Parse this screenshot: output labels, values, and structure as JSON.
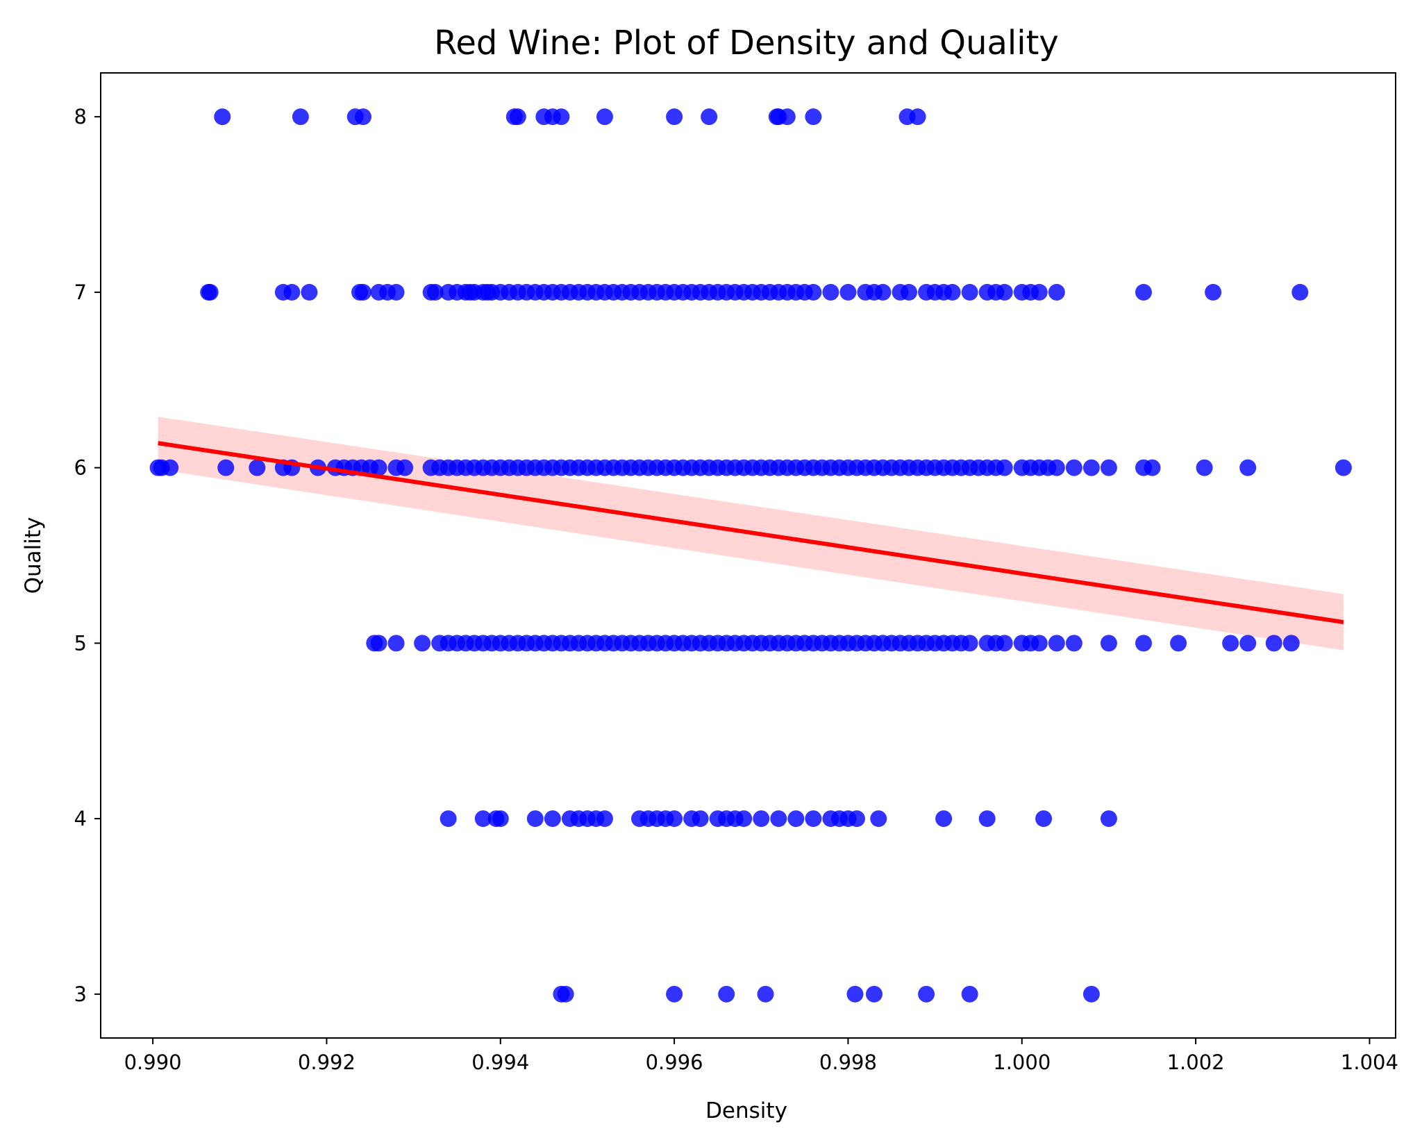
{
  "chart_data": {
    "type": "scatter",
    "title": "Red Wine: Plot of Density and Quality",
    "xlabel": "Density",
    "ylabel": "Quality",
    "xlim": [
      0.9894,
      1.0043
    ],
    "ylim": [
      2.75,
      8.25
    ],
    "xticks": [
      0.99,
      0.992,
      0.994,
      0.996,
      0.998,
      1.0,
      1.002,
      1.004
    ],
    "xtick_labels": [
      "0.990",
      "0.992",
      "0.994",
      "0.996",
      "0.998",
      "1.000",
      "1.002",
      "1.004"
    ],
    "yticks": [
      3,
      4,
      5,
      6,
      7,
      8
    ],
    "ytick_labels": [
      "3",
      "4",
      "5",
      "6",
      "7",
      "8"
    ],
    "grid": false,
    "colors": {
      "points": "#0000ff",
      "regression": "#ff0000",
      "ci_band": "#ffb3b3"
    },
    "series": [
      {
        "points": [
          [
            0.9908,
            8
          ],
          [
            0.9917,
            8
          ],
          [
            0.99233,
            8
          ],
          [
            0.99242,
            8
          ],
          [
            0.99416,
            8
          ],
          [
            0.9942,
            8
          ],
          [
            0.9945,
            8
          ],
          [
            0.9946,
            8
          ],
          [
            0.9947,
            8
          ],
          [
            0.9952,
            8
          ],
          [
            0.996,
            8
          ],
          [
            0.9964,
            8
          ],
          [
            0.99718,
            8
          ],
          [
            0.9972,
            8
          ],
          [
            0.9973,
            8
          ],
          [
            0.9976,
            8
          ],
          [
            0.99868,
            8
          ],
          [
            0.9988,
            8
          ],
          [
            0.99064,
            7
          ],
          [
            0.99066,
            7
          ],
          [
            0.9915,
            7
          ],
          [
            0.9916,
            7
          ],
          [
            0.9918,
            7
          ],
          [
            0.99238,
            7
          ],
          [
            0.99242,
            7
          ],
          [
            0.9926,
            7
          ],
          [
            0.9927,
            7
          ],
          [
            0.9928,
            7
          ],
          [
            0.9932,
            7
          ],
          [
            0.99325,
            7
          ],
          [
            0.9934,
            7
          ],
          [
            0.9935,
            7
          ],
          [
            0.9936,
            7
          ],
          [
            0.99365,
            7
          ],
          [
            0.9937,
            7
          ],
          [
            0.9938,
            7
          ],
          [
            0.99385,
            7
          ],
          [
            0.9939,
            7
          ],
          [
            0.994,
            7
          ],
          [
            0.9941,
            7
          ],
          [
            0.9942,
            7
          ],
          [
            0.9943,
            7
          ],
          [
            0.9944,
            7
          ],
          [
            0.9945,
            7
          ],
          [
            0.9946,
            7
          ],
          [
            0.9947,
            7
          ],
          [
            0.9948,
            7
          ],
          [
            0.9949,
            7
          ],
          [
            0.995,
            7
          ],
          [
            0.9951,
            7
          ],
          [
            0.9952,
            7
          ],
          [
            0.9953,
            7
          ],
          [
            0.9954,
            7
          ],
          [
            0.9955,
            7
          ],
          [
            0.9956,
            7
          ],
          [
            0.9957,
            7
          ],
          [
            0.9958,
            7
          ],
          [
            0.9959,
            7
          ],
          [
            0.996,
            7
          ],
          [
            0.9961,
            7
          ],
          [
            0.9962,
            7
          ],
          [
            0.9963,
            7
          ],
          [
            0.9964,
            7
          ],
          [
            0.9965,
            7
          ],
          [
            0.9966,
            7
          ],
          [
            0.9967,
            7
          ],
          [
            0.9968,
            7
          ],
          [
            0.9969,
            7
          ],
          [
            0.997,
            7
          ],
          [
            0.9971,
            7
          ],
          [
            0.9972,
            7
          ],
          [
            0.9973,
            7
          ],
          [
            0.9974,
            7
          ],
          [
            0.9975,
            7
          ],
          [
            0.9976,
            7
          ],
          [
            0.9978,
            7
          ],
          [
            0.998,
            7
          ],
          [
            0.9982,
            7
          ],
          [
            0.9983,
            7
          ],
          [
            0.9984,
            7
          ],
          [
            0.9986,
            7
          ],
          [
            0.9987,
            7
          ],
          [
            0.9989,
            7
          ],
          [
            0.999,
            7
          ],
          [
            0.9991,
            7
          ],
          [
            0.9992,
            7
          ],
          [
            0.9994,
            7
          ],
          [
            0.9996,
            7
          ],
          [
            0.9997,
            7
          ],
          [
            0.9998,
            7
          ],
          [
            1.0,
            7
          ],
          [
            1.0001,
            7
          ],
          [
            1.0002,
            7
          ],
          [
            1.0004,
            7
          ],
          [
            1.0014,
            7
          ],
          [
            1.0022,
            7
          ],
          [
            1.0032,
            7
          ],
          [
            0.99006,
            6
          ],
          [
            0.9901,
            6
          ],
          [
            0.9902,
            6
          ],
          [
            0.99084,
            6
          ],
          [
            0.9912,
            6
          ],
          [
            0.9915,
            6
          ],
          [
            0.9916,
            6
          ],
          [
            0.9919,
            6
          ],
          [
            0.9921,
            6
          ],
          [
            0.9922,
            6
          ],
          [
            0.9923,
            6
          ],
          [
            0.9924,
            6
          ],
          [
            0.9925,
            6
          ],
          [
            0.9926,
            6
          ],
          [
            0.9928,
            6
          ],
          [
            0.9929,
            6
          ],
          [
            0.9932,
            6
          ],
          [
            0.9933,
            6
          ],
          [
            0.9934,
            6
          ],
          [
            0.9935,
            6
          ],
          [
            0.9936,
            6
          ],
          [
            0.9937,
            6
          ],
          [
            0.9938,
            6
          ],
          [
            0.9939,
            6
          ],
          [
            0.994,
            6
          ],
          [
            0.9941,
            6
          ],
          [
            0.9942,
            6
          ],
          [
            0.9943,
            6
          ],
          [
            0.9944,
            6
          ],
          [
            0.9945,
            6
          ],
          [
            0.9946,
            6
          ],
          [
            0.9947,
            6
          ],
          [
            0.9948,
            6
          ],
          [
            0.9949,
            6
          ],
          [
            0.995,
            6
          ],
          [
            0.9951,
            6
          ],
          [
            0.9952,
            6
          ],
          [
            0.9953,
            6
          ],
          [
            0.9954,
            6
          ],
          [
            0.9955,
            6
          ],
          [
            0.9956,
            6
          ],
          [
            0.9957,
            6
          ],
          [
            0.9958,
            6
          ],
          [
            0.9959,
            6
          ],
          [
            0.996,
            6
          ],
          [
            0.9961,
            6
          ],
          [
            0.9962,
            6
          ],
          [
            0.9963,
            6
          ],
          [
            0.9964,
            6
          ],
          [
            0.9965,
            6
          ],
          [
            0.9966,
            6
          ],
          [
            0.9967,
            6
          ],
          [
            0.9968,
            6
          ],
          [
            0.9969,
            6
          ],
          [
            0.997,
            6
          ],
          [
            0.9971,
            6
          ],
          [
            0.9972,
            6
          ],
          [
            0.9973,
            6
          ],
          [
            0.9974,
            6
          ],
          [
            0.9975,
            6
          ],
          [
            0.9976,
            6
          ],
          [
            0.9977,
            6
          ],
          [
            0.9978,
            6
          ],
          [
            0.9979,
            6
          ],
          [
            0.998,
            6
          ],
          [
            0.9981,
            6
          ],
          [
            0.9982,
            6
          ],
          [
            0.9983,
            6
          ],
          [
            0.9984,
            6
          ],
          [
            0.9985,
            6
          ],
          [
            0.9986,
            6
          ],
          [
            0.9987,
            6
          ],
          [
            0.9988,
            6
          ],
          [
            0.9989,
            6
          ],
          [
            0.999,
            6
          ],
          [
            0.9991,
            6
          ],
          [
            0.9992,
            6
          ],
          [
            0.9993,
            6
          ],
          [
            0.9994,
            6
          ],
          [
            0.9995,
            6
          ],
          [
            0.9996,
            6
          ],
          [
            0.9997,
            6
          ],
          [
            0.9998,
            6
          ],
          [
            1.0,
            6
          ],
          [
            1.0001,
            6
          ],
          [
            1.0002,
            6
          ],
          [
            1.0003,
            6
          ],
          [
            1.0004,
            6
          ],
          [
            1.0006,
            6
          ],
          [
            1.0008,
            6
          ],
          [
            1.001,
            6
          ],
          [
            1.0014,
            6
          ],
          [
            1.0015,
            6
          ],
          [
            1.0021,
            6
          ],
          [
            1.0026,
            6
          ],
          [
            1.0037,
            6
          ],
          [
            0.99255,
            5
          ],
          [
            0.9926,
            5
          ],
          [
            0.9928,
            5
          ],
          [
            0.9931,
            5
          ],
          [
            0.9933,
            5
          ],
          [
            0.9934,
            5
          ],
          [
            0.9935,
            5
          ],
          [
            0.9936,
            5
          ],
          [
            0.9937,
            5
          ],
          [
            0.9938,
            5
          ],
          [
            0.9939,
            5
          ],
          [
            0.994,
            5
          ],
          [
            0.9941,
            5
          ],
          [
            0.9942,
            5
          ],
          [
            0.9943,
            5
          ],
          [
            0.9944,
            5
          ],
          [
            0.9945,
            5
          ],
          [
            0.9946,
            5
          ],
          [
            0.9947,
            5
          ],
          [
            0.9948,
            5
          ],
          [
            0.9949,
            5
          ],
          [
            0.995,
            5
          ],
          [
            0.9951,
            5
          ],
          [
            0.9952,
            5
          ],
          [
            0.9953,
            5
          ],
          [
            0.9954,
            5
          ],
          [
            0.9955,
            5
          ],
          [
            0.9956,
            5
          ],
          [
            0.9957,
            5
          ],
          [
            0.9958,
            5
          ],
          [
            0.9959,
            5
          ],
          [
            0.996,
            5
          ],
          [
            0.9961,
            5
          ],
          [
            0.9962,
            5
          ],
          [
            0.9963,
            5
          ],
          [
            0.9964,
            5
          ],
          [
            0.9965,
            5
          ],
          [
            0.9966,
            5
          ],
          [
            0.9967,
            5
          ],
          [
            0.9968,
            5
          ],
          [
            0.9969,
            5
          ],
          [
            0.997,
            5
          ],
          [
            0.9971,
            5
          ],
          [
            0.9972,
            5
          ],
          [
            0.9973,
            5
          ],
          [
            0.9974,
            5
          ],
          [
            0.9975,
            5
          ],
          [
            0.9976,
            5
          ],
          [
            0.9977,
            5
          ],
          [
            0.9978,
            5
          ],
          [
            0.9979,
            5
          ],
          [
            0.998,
            5
          ],
          [
            0.9981,
            5
          ],
          [
            0.9982,
            5
          ],
          [
            0.9983,
            5
          ],
          [
            0.9984,
            5
          ],
          [
            0.9985,
            5
          ],
          [
            0.9986,
            5
          ],
          [
            0.9987,
            5
          ],
          [
            0.9988,
            5
          ],
          [
            0.9989,
            5
          ],
          [
            0.999,
            5
          ],
          [
            0.9991,
            5
          ],
          [
            0.9992,
            5
          ],
          [
            0.9993,
            5
          ],
          [
            0.9994,
            5
          ],
          [
            0.9996,
            5
          ],
          [
            0.9997,
            5
          ],
          [
            0.9998,
            5
          ],
          [
            1.0,
            5
          ],
          [
            1.0001,
            5
          ],
          [
            1.0002,
            5
          ],
          [
            1.0004,
            5
          ],
          [
            1.0006,
            5
          ],
          [
            1.001,
            5
          ],
          [
            1.0014,
            5
          ],
          [
            1.0018,
            5
          ],
          [
            1.0024,
            5
          ],
          [
            1.0026,
            5
          ],
          [
            1.0029,
            5
          ],
          [
            1.0031,
            5
          ],
          [
            0.9934,
            4
          ],
          [
            0.9938,
            4
          ],
          [
            0.99395,
            4
          ],
          [
            0.994,
            4
          ],
          [
            0.9944,
            4
          ],
          [
            0.9946,
            4
          ],
          [
            0.9948,
            4
          ],
          [
            0.9949,
            4
          ],
          [
            0.995,
            4
          ],
          [
            0.9951,
            4
          ],
          [
            0.9952,
            4
          ],
          [
            0.9956,
            4
          ],
          [
            0.9957,
            4
          ],
          [
            0.9958,
            4
          ],
          [
            0.9959,
            4
          ],
          [
            0.996,
            4
          ],
          [
            0.9962,
            4
          ],
          [
            0.9963,
            4
          ],
          [
            0.9965,
            4
          ],
          [
            0.9966,
            4
          ],
          [
            0.9967,
            4
          ],
          [
            0.9968,
            4
          ],
          [
            0.997,
            4
          ],
          [
            0.9972,
            4
          ],
          [
            0.9974,
            4
          ],
          [
            0.9976,
            4
          ],
          [
            0.9978,
            4
          ],
          [
            0.9979,
            4
          ],
          [
            0.998,
            4
          ],
          [
            0.9981,
            4
          ],
          [
            0.99835,
            4
          ],
          [
            0.9991,
            4
          ],
          [
            0.9996,
            4
          ],
          [
            1.00025,
            4
          ],
          [
            1.001,
            4
          ],
          [
            0.9947,
            3
          ],
          [
            0.99475,
            3
          ],
          [
            0.996,
            3
          ],
          [
            0.9966,
            3
          ],
          [
            0.99705,
            3
          ],
          [
            0.99808,
            3
          ],
          [
            0.9983,
            3
          ],
          [
            0.9989,
            3
          ],
          [
            0.9994,
            3
          ],
          [
            1.0008,
            3
          ]
        ]
      }
    ],
    "regression": {
      "x_range": [
        0.99006,
        1.0037
      ],
      "y_start": 6.14,
      "y_end": 5.12,
      "ci_start": [
        5.99,
        6.29
      ],
      "ci_end": [
        4.96,
        5.28
      ]
    }
  }
}
